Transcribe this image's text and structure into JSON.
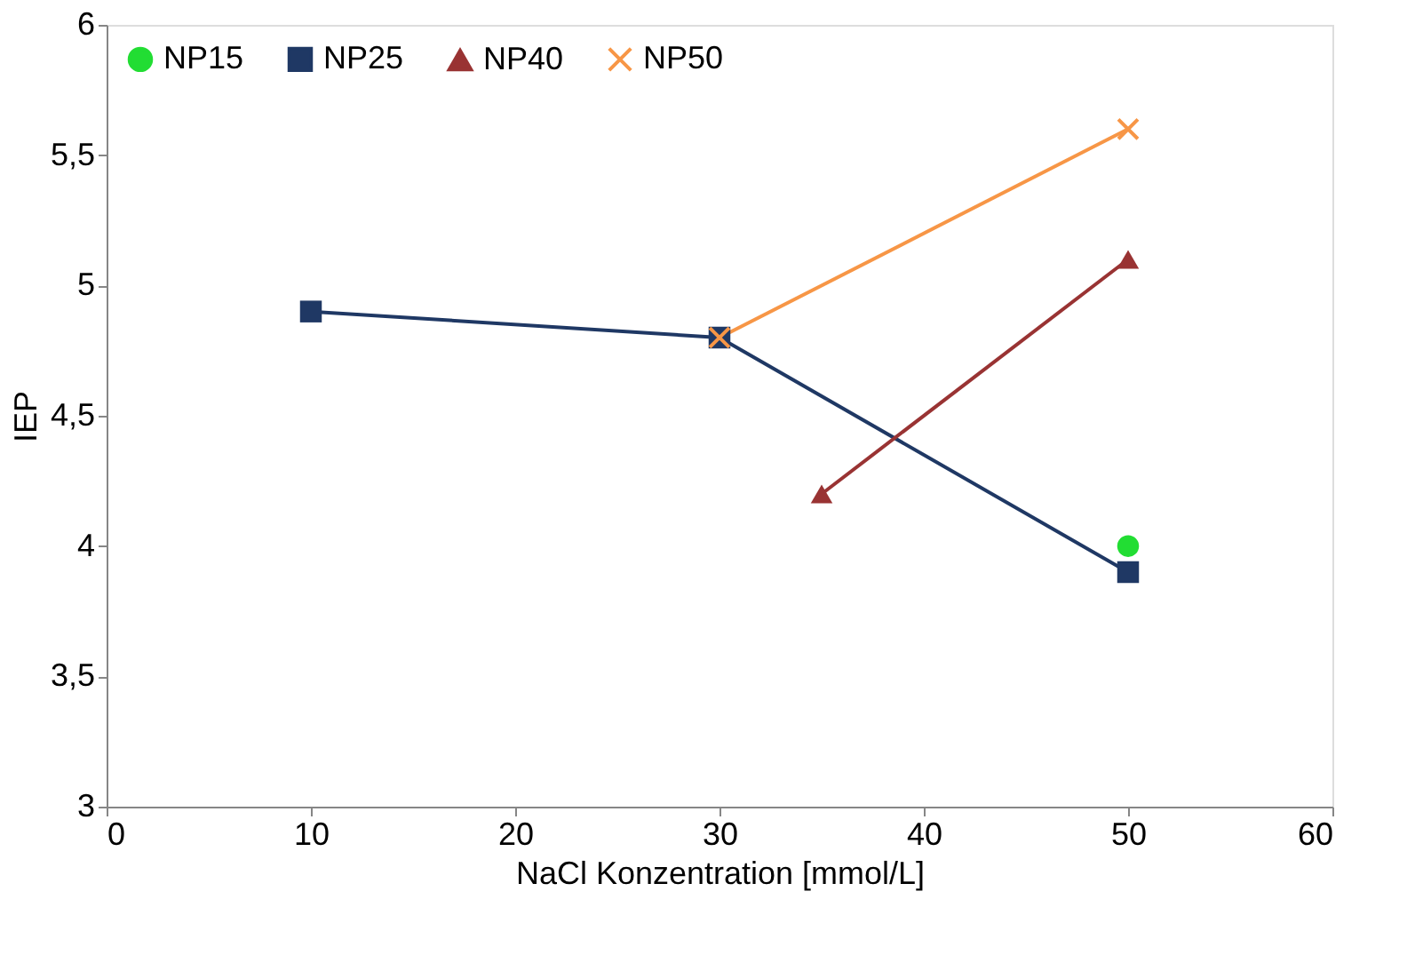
{
  "chart_data": {
    "type": "line",
    "xlabel": "NaCl Konzentration [mmol/L]",
    "ylabel": "IEP",
    "xlim": [
      0,
      60
    ],
    "xticks": [
      0,
      10,
      20,
      30,
      40,
      50,
      60
    ],
    "ylim": [
      3,
      6
    ],
    "yticks": [
      3,
      {
        "value": 3.5,
        "label": "3,5"
      },
      4,
      {
        "value": 4.5,
        "label": "4,5"
      },
      5,
      {
        "value": 5.5,
        "label": "5,5"
      },
      6
    ],
    "grid": false,
    "legend": "top left",
    "series": [
      {
        "name": "NP15",
        "color": "#22dd33",
        "marker": "circle",
        "x": [
          50
        ],
        "values": [
          4.0
        ]
      },
      {
        "name": "NP25",
        "color": "#1f3864",
        "marker": "square",
        "x": [
          10,
          30,
          50
        ],
        "values": [
          4.9,
          4.8,
          3.9
        ]
      },
      {
        "name": "NP40",
        "color": "#993333",
        "marker": "triangle",
        "x": [
          35,
          50
        ],
        "values": [
          4.2,
          5.1
        ]
      },
      {
        "name": "NP50",
        "color": "#f79646",
        "marker": "cross",
        "x": [
          30,
          50
        ],
        "values": [
          4.8,
          5.6
        ]
      }
    ]
  }
}
